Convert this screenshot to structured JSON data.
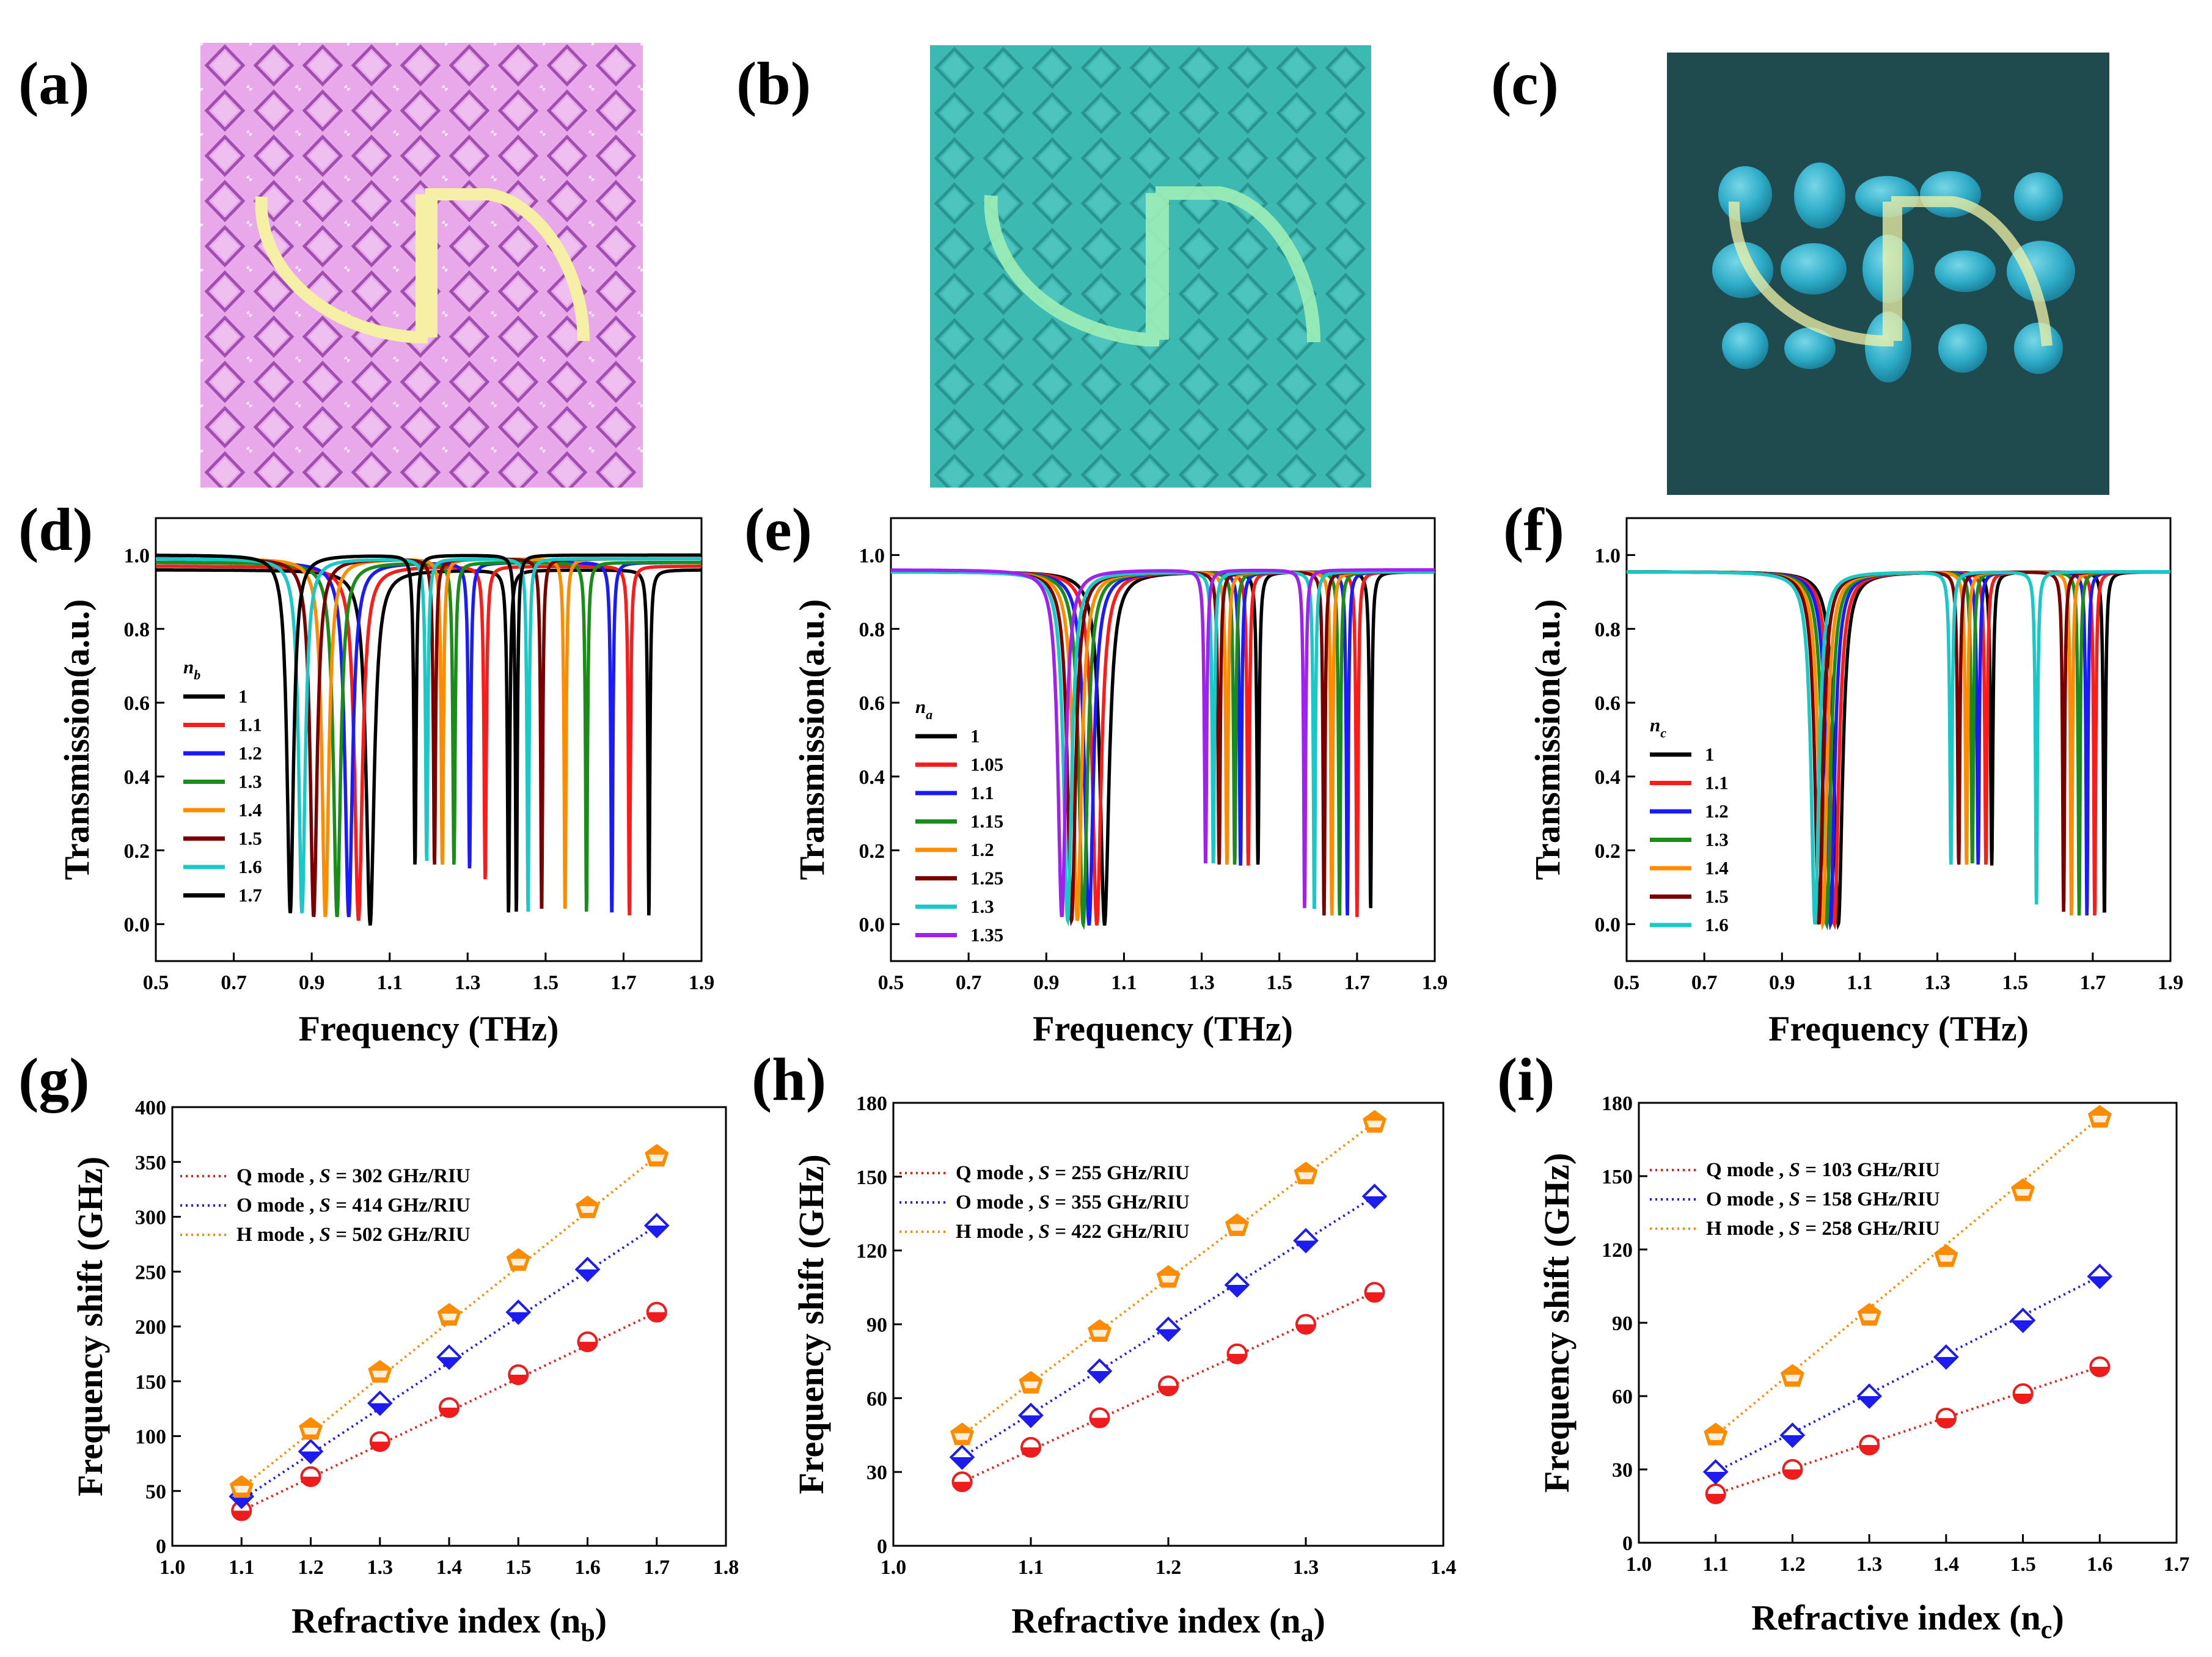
{
  "panel_labels": [
    "(a)",
    "(b)",
    "(c)",
    "(d)",
    "(e)",
    "(f)",
    "(g)",
    "(h)",
    "(i)"
  ],
  "colors": {
    "pink_bg": "#e7a6e8",
    "pink_line": "#c274c8",
    "teal_bg": "#38b8b0",
    "teal_line": "#2a9e98",
    "dark_bg": "#1f4b4f",
    "drop": "#36b9d6",
    "resonator": "#f3f1a6",
    "resonator_b": "#9cefb4",
    "q_mode": "#ee1c1c",
    "o_mode": "#1c1cee",
    "h_mode": "#ff8c00"
  },
  "chart_data": [
    {
      "id": "d",
      "type": "line",
      "legend_symbol": "n",
      "legend_sub": "b",
      "xlabel": "Frequency (THz)",
      "ylabel": "Transmission(a.u.)",
      "xlim": [
        0.5,
        1.9
      ],
      "ylim": [
        -0.1,
        1.1
      ],
      "xticks": [
        "0.5",
        "0.7",
        "0.9",
        "1.1",
        "1.3",
        "1.5",
        "1.7",
        "1.9"
      ],
      "yticks": [
        "0.0",
        "0.2",
        "0.4",
        "0.6",
        "0.8",
        "1.0"
      ],
      "series": [
        {
          "name": "1",
          "color": "#000000",
          "base": 0.96,
          "res": [
            [
              1.05,
              0.0,
              0.025
            ],
            [
              1.405,
              0.03,
              0.007
            ],
            [
              1.765,
              0.02,
              0.006
            ]
          ]
        },
        {
          "name": "1.1",
          "color": "#ff1a1a",
          "base": 0.97,
          "res": [
            [
              1.02,
              0.01,
              0.024
            ],
            [
              1.345,
              0.12,
              0.007
            ],
            [
              1.715,
              0.02,
              0.006
            ]
          ]
        },
        {
          "name": "1.2",
          "color": "#1a1aff",
          "base": 0.98,
          "res": [
            [
              0.995,
              0.02,
              0.023
            ],
            [
              1.305,
              0.15,
              0.007
            ],
            [
              1.67,
              0.02,
              0.006
            ]
          ]
        },
        {
          "name": "1.3",
          "color": "#1a8c1a",
          "base": 0.98,
          "res": [
            [
              0.965,
              0.02,
              0.022
            ],
            [
              1.265,
              0.16,
              0.007
            ],
            [
              1.605,
              0.03,
              0.006
            ]
          ]
        },
        {
          "name": "1.4",
          "color": "#ff8c00",
          "base": 0.99,
          "res": [
            [
              0.935,
              0.02,
              0.021
            ],
            [
              1.235,
              0.16,
              0.007
            ],
            [
              1.55,
              0.03,
              0.006
            ]
          ]
        },
        {
          "name": "1.5",
          "color": "#7a0000",
          "base": 0.99,
          "res": [
            [
              0.905,
              0.02,
              0.021
            ],
            [
              1.215,
              0.16,
              0.007
            ],
            [
              1.49,
              0.03,
              0.006
            ]
          ]
        },
        {
          "name": "1.6",
          "color": "#1ac8c8",
          "base": 0.99,
          "res": [
            [
              0.875,
              0.03,
              0.02
            ],
            [
              1.195,
              0.17,
              0.007
            ],
            [
              1.455,
              0.03,
              0.006
            ]
          ]
        },
        {
          "name": "1.7",
          "color": "#000000",
          "base": 1.0,
          "res": [
            [
              0.845,
              0.03,
              0.02
            ],
            [
              1.165,
              0.16,
              0.007
            ],
            [
              1.425,
              0.03,
              0.006
            ]
          ]
        }
      ]
    },
    {
      "id": "e",
      "type": "line",
      "legend_symbol": "n",
      "legend_sub": "a",
      "xlabel": "Frequency (THz)",
      "ylabel": "Transmission(a.u.)",
      "xlim": [
        0.5,
        1.9
      ],
      "ylim": [
        -0.1,
        1.1
      ],
      "xticks": [
        "0.5",
        "0.7",
        "0.9",
        "1.1",
        "1.3",
        "1.5",
        "1.7",
        "1.9"
      ],
      "yticks": [
        "0.0",
        "0.2",
        "0.4",
        "0.6",
        "0.8",
        "1.0"
      ],
      "series": [
        {
          "name": "1",
          "color": "#000000",
          "base": 0.955,
          "res": [
            [
              1.05,
              0.0,
              0.028
            ],
            [
              1.445,
              0.16,
              0.007
            ],
            [
              1.735,
              0.04,
              0.006
            ]
          ]
        },
        {
          "name": "1.05",
          "color": "#ff1a1a",
          "base": 0.955,
          "res": [
            [
              1.03,
              0.0,
              0.027
            ],
            [
              1.42,
              0.16,
              0.007
            ],
            [
              1.7,
              0.02,
              0.006
            ]
          ]
        },
        {
          "name": "1.1",
          "color": "#1a1aff",
          "base": 0.955,
          "res": [
            [
              1.01,
              0.0,
              0.027
            ],
            [
              1.4,
              0.16,
              0.007
            ],
            [
              1.675,
              0.02,
              0.006
            ]
          ]
        },
        {
          "name": "1.15",
          "color": "#1a8c1a",
          "base": 0.955,
          "res": [
            [
              0.995,
              0.0,
              0.026
            ],
            [
              1.385,
              0.16,
              0.007
            ],
            [
              1.655,
              0.02,
              0.006
            ]
          ]
        },
        {
          "name": "1.2",
          "color": "#ff8c00",
          "base": 0.955,
          "res": [
            [
              0.98,
              0.01,
              0.026
            ],
            [
              1.365,
              0.16,
              0.007
            ],
            [
              1.635,
              0.02,
              0.006
            ]
          ]
        },
        {
          "name": "1.25",
          "color": "#7a0000",
          "base": 0.955,
          "res": [
            [
              0.965,
              0.01,
              0.025
            ],
            [
              1.345,
              0.16,
              0.007
            ],
            [
              1.615,
              0.02,
              0.006
            ]
          ]
        },
        {
          "name": "1.3",
          "color": "#1ac8c8",
          "base": 0.955,
          "res": [
            [
              0.955,
              0.01,
              0.025
            ],
            [
              1.33,
              0.16,
              0.007
            ],
            [
              1.59,
              0.03,
              0.006
            ]
          ]
        },
        {
          "name": "1.35",
          "color": "#a020f0",
          "base": 0.96,
          "res": [
            [
              0.94,
              0.02,
              0.024
            ],
            [
              1.31,
              0.16,
              0.007
            ],
            [
              1.565,
              0.04,
              0.006
            ]
          ]
        }
      ]
    },
    {
      "id": "f",
      "type": "line",
      "legend_symbol": "n",
      "legend_sub": "c",
      "xlabel": "Frequency (THz)",
      "ylabel": "Transmission(a.u.)",
      "xlim": [
        0.5,
        1.9
      ],
      "ylim": [
        -0.1,
        1.1
      ],
      "xticks": [
        "0.5",
        "0.7",
        "0.9",
        "1.1",
        "1.3",
        "1.5",
        "1.7",
        "1.9"
      ],
      "yticks": [
        "0.0",
        "0.2",
        "0.4",
        "0.6",
        "0.8",
        "1.0"
      ],
      "series": [
        {
          "name": "1",
          "color": "#000000",
          "base": 0.955,
          "res": [
            [
              1.045,
              0.0,
              0.026
            ],
            [
              1.44,
              0.16,
              0.007
            ],
            [
              1.73,
              0.02,
              0.006
            ]
          ]
        },
        {
          "name": "1.1",
          "color": "#ff1a1a",
          "base": 0.955,
          "res": [
            [
              1.035,
              0.0,
              0.026
            ],
            [
              1.425,
              0.16,
              0.007
            ],
            [
              1.705,
              0.02,
              0.006
            ]
          ]
        },
        {
          "name": "1.2",
          "color": "#1a1aff",
          "base": 0.955,
          "res": [
            [
              1.025,
              0.0,
              0.025
            ],
            [
              1.405,
              0.16,
              0.007
            ],
            [
              1.685,
              0.02,
              0.006
            ]
          ]
        },
        {
          "name": "1.3",
          "color": "#1a8c1a",
          "base": 0.955,
          "res": [
            [
              1.015,
              0.0,
              0.025
            ],
            [
              1.39,
              0.16,
              0.007
            ],
            [
              1.665,
              0.02,
              0.006
            ]
          ]
        },
        {
          "name": "1.4",
          "color": "#ff8c00",
          "base": 0.955,
          "res": [
            [
              1.005,
              0.0,
              0.025
            ],
            [
              1.375,
              0.16,
              0.007
            ],
            [
              1.645,
              0.02,
              0.006
            ]
          ]
        },
        {
          "name": "1.5",
          "color": "#7a0000",
          "base": 0.955,
          "res": [
            [
              0.995,
              0.0,
              0.024
            ],
            [
              1.355,
              0.16,
              0.007
            ],
            [
              1.625,
              0.03,
              0.006
            ]
          ]
        },
        {
          "name": "1.6",
          "color": "#1ac8c8",
          "base": 0.955,
          "res": [
            [
              0.985,
              0.0,
              0.024
            ],
            [
              1.335,
              0.16,
              0.007
            ],
            [
              1.555,
              0.05,
              0.006
            ]
          ]
        }
      ]
    },
    {
      "id": "g",
      "type": "scatter",
      "xlabel": "Refractive index (n",
      "xlabel_sub": "b",
      "xlabel_end": ")",
      "ylabel": "Frequency shift (GHz)",
      "xlim": [
        1.0,
        1.8
      ],
      "ylim": [
        0,
        400
      ],
      "xticks": [
        "1.0",
        "1.1",
        "1.2",
        "1.3",
        "1.4",
        "1.5",
        "1.6",
        "1.7",
        "1.8"
      ],
      "yticks": [
        "0",
        "50",
        "100",
        "150",
        "200",
        "250",
        "300",
        "350",
        "400"
      ],
      "x": [
        1.1,
        1.2,
        1.3,
        1.4,
        1.5,
        1.6,
        1.7
      ],
      "series": [
        {
          "name": "Q mode",
          "color": "#ee1c1c",
          "marker": "circle",
          "values": [
            32,
            63,
            95,
            126,
            156,
            186,
            213
          ],
          "sens_value": "302",
          "fit": [
            1.1,
            32,
            1.7,
            213
          ]
        },
        {
          "name": "O mode",
          "color": "#1c1cee",
          "marker": "diamond",
          "values": [
            45,
            86,
            130,
            172,
            213,
            252,
            292
          ],
          "sens_value": "414",
          "fit": [
            1.1,
            42,
            1.7,
            292
          ]
        },
        {
          "name": "H mode",
          "color": "#ff8c00",
          "marker": "pentagon",
          "values": [
            53,
            106,
            158,
            210,
            260,
            308,
            355
          ],
          "sens_value": "502",
          "fit": [
            1.1,
            53,
            1.7,
            355
          ]
        }
      ],
      "legend": {
        "mode_suffix": " ,",
        "sens_prefix": "S",
        "sens_eq": " = ",
        "sens_unit": " GHz/RIU"
      }
    },
    {
      "id": "h",
      "type": "scatter",
      "xlabel": "Refractive index (n",
      "xlabel_sub": "a",
      "xlabel_end": ")",
      "ylabel": "Frequency shift (GHz)",
      "xlim": [
        1.0,
        1.4
      ],
      "ylim": [
        0,
        180
      ],
      "xticks": [
        "1.0",
        "1.1",
        "1.2",
        "1.3",
        "1.4"
      ],
      "yticks": [
        "0",
        "30",
        "60",
        "90",
        "120",
        "150",
        "180"
      ],
      "x": [
        1.05,
        1.1,
        1.15,
        1.2,
        1.25,
        1.3,
        1.35
      ],
      "series": [
        {
          "name": "Q mode",
          "color": "#ee1c1c",
          "marker": "circle",
          "values": [
            26,
            40,
            52,
            65,
            78,
            90,
            103
          ],
          "sens_value": "255",
          "fit": [
            1.05,
            26,
            1.35,
            103
          ]
        },
        {
          "name": "O mode",
          "color": "#1c1cee",
          "marker": "diamond",
          "values": [
            36,
            53,
            71,
            88,
            106,
            124,
            142
          ],
          "sens_value": "355",
          "fit": [
            1.05,
            36,
            1.35,
            142
          ]
        },
        {
          "name": "H mode",
          "color": "#ff8c00",
          "marker": "pentagon",
          "values": [
            45,
            66,
            87,
            109,
            130,
            151,
            172
          ],
          "sens_value": "422",
          "fit": [
            1.05,
            45,
            1.35,
            172
          ]
        }
      ],
      "legend": {
        "mode_suffix": " ,",
        "sens_prefix": "S",
        "sens_eq": " = ",
        "sens_unit": " GHz/RIU"
      }
    },
    {
      "id": "i",
      "type": "scatter",
      "xlabel": "Refractive index (n",
      "xlabel_sub": "c",
      "xlabel_end": ")",
      "ylabel": "Frequency shift (GHz)",
      "xlim": [
        1.0,
        1.7
      ],
      "ylim": [
        0,
        180
      ],
      "xticks": [
        "1.0",
        "1.1",
        "1.2",
        "1.3",
        "1.4",
        "1.5",
        "1.6",
        "1.7"
      ],
      "yticks": [
        "0",
        "30",
        "60",
        "90",
        "120",
        "150",
        "180"
      ],
      "x": [
        1.1,
        1.2,
        1.3,
        1.4,
        1.5,
        1.6
      ],
      "series": [
        {
          "name": "Q mode",
          "color": "#ee1c1c",
          "marker": "circle",
          "values": [
            20,
            30,
            40,
            51,
            61,
            72
          ],
          "sens_value": "103",
          "fit": [
            1.1,
            20,
            1.6,
            72
          ]
        },
        {
          "name": "O mode",
          "color": "#1c1cee",
          "marker": "diamond",
          "values": [
            29,
            44,
            60,
            76,
            91,
            109
          ],
          "sens_value": "158",
          "fit": [
            1.1,
            29,
            1.6,
            109
          ]
        },
        {
          "name": "H mode",
          "color": "#ff8c00",
          "marker": "pentagon",
          "values": [
            44,
            68,
            93,
            117,
            144,
            174
          ],
          "sens_value": "258",
          "fit": [
            1.1,
            44,
            1.6,
            174
          ]
        }
      ],
      "legend": {
        "mode_suffix": " ,",
        "sens_prefix": "S",
        "sens_eq": " = ",
        "sens_unit": " GHz/RIU"
      }
    }
  ]
}
